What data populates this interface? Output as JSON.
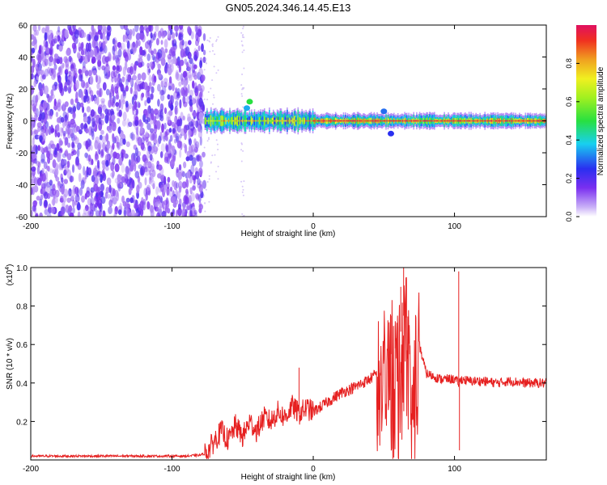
{
  "title": "GN05.2024.346.14.45.E13",
  "colors": {
    "snr_line": "#e62020",
    "spectrogram_purple": "#7a2ff0",
    "spectrogram_light": "#e6d9fb",
    "background": "#ffffff"
  },
  "chart_data": [
    {
      "type": "heatmap",
      "title": "GN05.2024.346.14.45.E13",
      "xlabel": "Height of straight line (km)",
      "ylabel": "Frequency (Hz)",
      "xlim": [
        -200,
        165
      ],
      "ylim": [
        -60,
        60
      ],
      "x_ticks": [
        -200,
        -100,
        0,
        100
      ],
      "y_ticks": [
        -60,
        -40,
        -20,
        0,
        20,
        40,
        60
      ],
      "colorbar": {
        "label": "Normalized spectral amplitude",
        "range": [
          0,
          1
        ],
        "ticks": [
          "0.0",
          "0.2",
          "0.4",
          "0.6",
          "0.8"
        ],
        "colormap": "rainbow (purple-blue-cyan-green-yellow-orange-red)"
      },
      "regions": [
        {
          "x_range": [
            -200,
            -77
          ],
          "frequency_band": [
            -60,
            60
          ],
          "amplitude": [
            0.0,
            0.15
          ],
          "pattern": "noise speckle"
        },
        {
          "x_range": [
            -77,
            0
          ],
          "frequency_band": [
            -5,
            5
          ],
          "amplitude": [
            0.2,
            0.9
          ],
          "pattern": "narrow band near 0 Hz"
        },
        {
          "x_range": [
            0,
            165
          ],
          "frequency_band": [
            -3,
            3
          ],
          "amplitude": [
            0.4,
            1.0
          ],
          "pattern": "strong narrow band centered at 0 Hz"
        }
      ],
      "features": [
        {
          "x": -45,
          "frequency": 12,
          "amplitude": 0.5
        },
        {
          "x": -47,
          "frequency": 8,
          "amplitude": 0.35
        },
        {
          "x": 50,
          "frequency": 6,
          "amplitude": 0.3
        },
        {
          "x": 55,
          "frequency": -8,
          "amplitude": 0.25
        }
      ]
    },
    {
      "type": "line",
      "ylabel": "SNR (10 * v/v)",
      "y_multiplier": "(x10",
      "y_multiplier_exp": "4",
      "xlabel": "Height of straight line (km)",
      "xlim": [
        -200,
        165
      ],
      "ylim": [
        0,
        1.0
      ],
      "x_ticks": [
        -200,
        -100,
        0,
        100
      ],
      "y_ticks": [
        0.2,
        0.4,
        0.6,
        0.8,
        1.0
      ],
      "series": [
        {
          "color": "#e62020",
          "x": [
            -200,
            -180,
            -160,
            -140,
            -120,
            -100,
            -90,
            -80,
            -75,
            -70,
            -65,
            -60,
            -55,
            -50,
            -45,
            -40,
            -35,
            -30,
            -25,
            -20,
            -15,
            -10,
            -5,
            0,
            10,
            20,
            30,
            40,
            45,
            50,
            55,
            60,
            63,
            65,
            70,
            75,
            80,
            90,
            100,
            103,
            105,
            110,
            120,
            130,
            140,
            150,
            160,
            165
          ],
          "y": [
            0.02,
            0.02,
            0.02,
            0.02,
            0.02,
            0.02,
            0.02,
            0.025,
            0.04,
            0.1,
            0.15,
            0.1,
            0.18,
            0.12,
            0.2,
            0.15,
            0.22,
            0.2,
            0.25,
            0.22,
            0.28,
            0.24,
            0.27,
            0.25,
            0.3,
            0.35,
            0.38,
            0.42,
            0.45,
            0.5,
            0.55,
            0.6,
            0.7,
            0.8,
            0.5,
            0.6,
            0.45,
            0.42,
            0.42,
            0.4,
            0.42,
            0.41,
            0.41,
            0.4,
            0.41,
            0.4,
            0.4,
            0.4
          ]
        }
      ],
      "spikes": [
        {
          "x": -10,
          "y": 0.48
        },
        {
          "x": 55,
          "y": 0.75
        },
        {
          "x": 58,
          "y": 0.7
        },
        {
          "x": 62,
          "y": 0.9
        },
        {
          "x": 64,
          "y": 1.0
        },
        {
          "x": 66,
          "y": 0.95
        },
        {
          "x": 103,
          "y": 0.98
        },
        {
          "x": 103.5,
          "y": 0.05
        }
      ]
    }
  ]
}
